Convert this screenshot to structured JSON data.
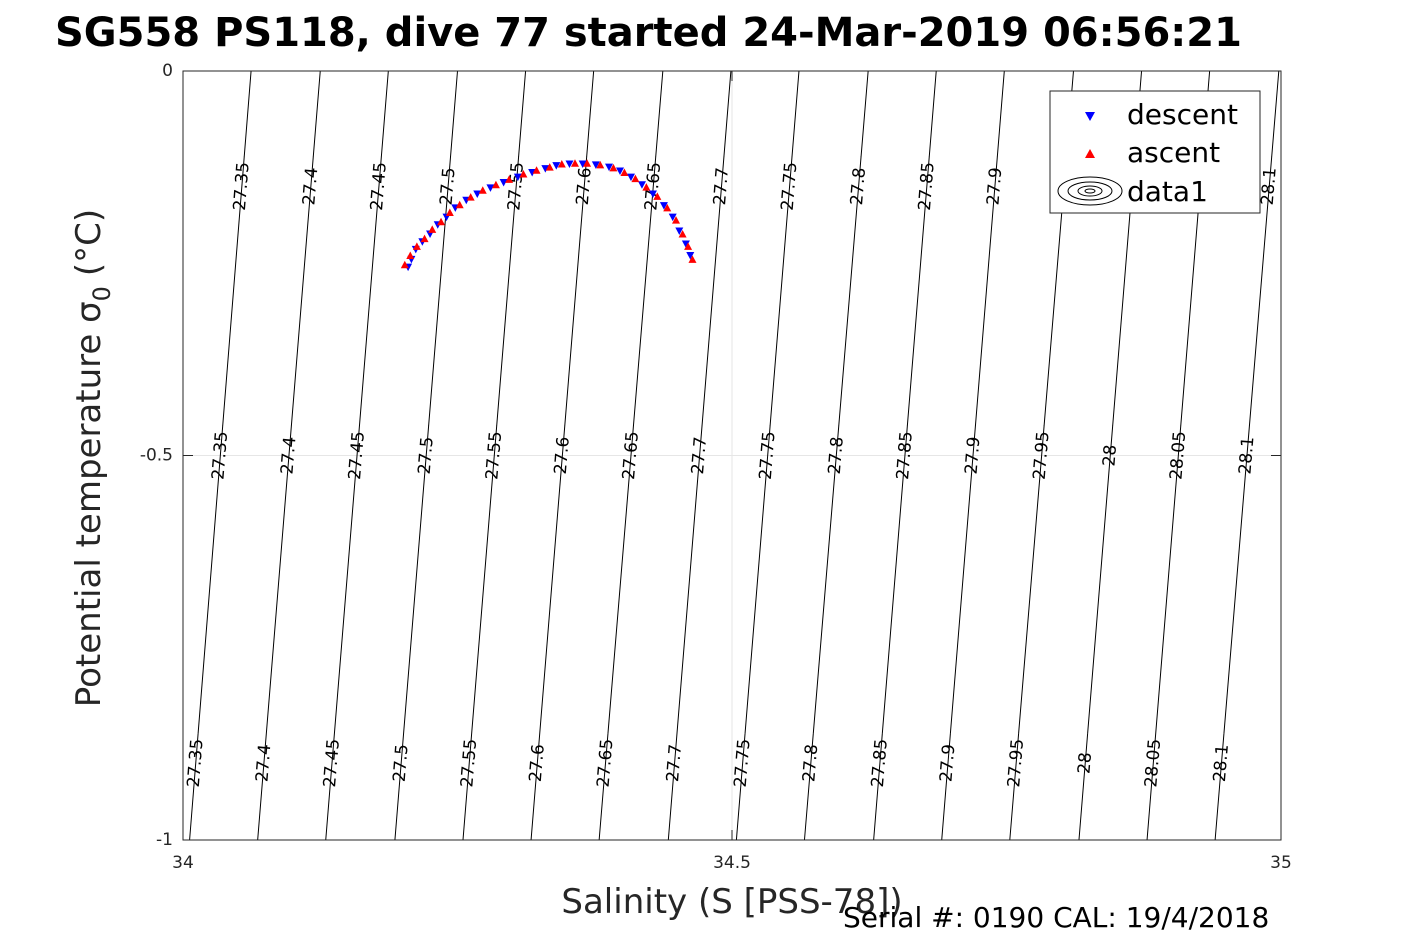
{
  "chart_data": {
    "type": "scatter",
    "title": "SG558 PS118, dive 77 started 24-Mar-2019 06:56:21",
    "xlabel": "Salinity (S [PSS-78])",
    "ylabel": "Potential temperature σ",
    "ylabel_sub": "0",
    "ylabel_unit": "(°C)",
    "xlim": [
      34,
      35
    ],
    "ylim": [
      -1,
      0
    ],
    "x_ticks": [
      34,
      34.5,
      35
    ],
    "x_tick_labels": [
      "34",
      "34.5",
      "35"
    ],
    "y_ticks": [
      0,
      -0.5,
      -1
    ],
    "y_tick_labels": [
      "0",
      "-0.5",
      "-1"
    ],
    "grid": true,
    "legend_position": "top-right",
    "legend": [
      {
        "label": "descent",
        "color": "#0000ff",
        "marker": "triangle-down"
      },
      {
        "label": "ascent",
        "color": "#ff0000",
        "marker": "triangle-up"
      },
      {
        "label": "data1",
        "color": "#000000",
        "marker": "contour"
      }
    ],
    "isopycnals": [
      {
        "label": "27.35",
        "points": [
          [
            34.006,
            -1
          ],
          [
            34.062,
            0
          ]
        ]
      },
      {
        "label": "27.4",
        "points": [
          [
            34.068,
            -1
          ],
          [
            34.125,
            0
          ]
        ]
      },
      {
        "label": "27.45",
        "points": [
          [
            34.13,
            -1
          ],
          [
            34.187,
            0
          ]
        ]
      },
      {
        "label": "27.5",
        "points": [
          [
            34.193,
            -1
          ],
          [
            34.25,
            0
          ]
        ]
      },
      {
        "label": "27.55",
        "points": [
          [
            34.255,
            -1
          ],
          [
            34.312,
            0
          ]
        ]
      },
      {
        "label": "27.6",
        "points": [
          [
            34.317,
            -1
          ],
          [
            34.374,
            0
          ]
        ]
      },
      {
        "label": "27.65",
        "points": [
          [
            34.379,
            -1
          ],
          [
            34.437,
            0
          ]
        ]
      },
      {
        "label": "27.7",
        "points": [
          [
            34.442,
            -1
          ],
          [
            34.499,
            0
          ]
        ]
      },
      {
        "label": "27.75",
        "points": [
          [
            34.504,
            -1
          ],
          [
            34.561,
            0
          ]
        ]
      },
      {
        "label": "27.8",
        "points": [
          [
            34.566,
            -1
          ],
          [
            34.624,
            0
          ]
        ]
      },
      {
        "label": "27.85",
        "points": [
          [
            34.629,
            -1
          ],
          [
            34.686,
            0
          ]
        ]
      },
      {
        "label": "27.9",
        "points": [
          [
            34.691,
            -1
          ],
          [
            34.748,
            0
          ]
        ]
      },
      {
        "label": "27.95",
        "points": [
          [
            34.753,
            -1
          ],
          [
            34.811,
            0
          ]
        ]
      },
      {
        "label": "28",
        "points": [
          [
            34.816,
            -1
          ],
          [
            34.873,
            0
          ]
        ]
      },
      {
        "label": "28.05",
        "points": [
          [
            34.878,
            -1
          ],
          [
            34.935,
            0
          ]
        ]
      },
      {
        "label": "28.1",
        "points": [
          [
            34.94,
            -1
          ],
          [
            34.998,
            0
          ]
        ]
      }
    ],
    "series": [
      {
        "name": "descent",
        "color": "#0000ff",
        "marker": "triangle-down",
        "x": [
          34.205,
          34.208,
          34.212,
          34.218,
          34.225,
          34.232,
          34.24,
          34.248,
          34.258,
          34.268,
          34.28,
          34.292,
          34.305,
          34.318,
          34.33,
          34.34,
          34.352,
          34.364,
          34.376,
          34.388,
          34.398,
          34.408,
          34.418,
          34.428,
          34.438,
          34.446,
          34.452,
          34.458,
          34.462
        ],
        "y": [
          -0.255,
          -0.245,
          -0.232,
          -0.222,
          -0.212,
          -0.2,
          -0.19,
          -0.178,
          -0.168,
          -0.16,
          -0.152,
          -0.145,
          -0.138,
          -0.132,
          -0.127,
          -0.123,
          -0.121,
          -0.121,
          -0.122,
          -0.125,
          -0.13,
          -0.138,
          -0.148,
          -0.16,
          -0.175,
          -0.19,
          -0.208,
          -0.225,
          -0.24
        ]
      },
      {
        "name": "ascent",
        "color": "#ff0000",
        "marker": "triangle-up",
        "x": [
          34.202,
          34.207,
          34.213,
          34.22,
          34.227,
          34.235,
          34.243,
          34.252,
          34.262,
          34.273,
          34.285,
          34.297,
          34.31,
          34.322,
          34.334,
          34.345,
          34.357,
          34.368,
          34.38,
          34.392,
          34.402,
          34.412,
          34.422,
          34.432,
          34.441,
          34.449,
          34.455,
          34.46,
          34.464
        ],
        "y": [
          -0.252,
          -0.24,
          -0.228,
          -0.218,
          -0.206,
          -0.196,
          -0.184,
          -0.174,
          -0.164,
          -0.155,
          -0.148,
          -0.141,
          -0.134,
          -0.129,
          -0.125,
          -0.121,
          -0.12,
          -0.12,
          -0.122,
          -0.126,
          -0.132,
          -0.14,
          -0.151,
          -0.163,
          -0.178,
          -0.194,
          -0.212,
          -0.228,
          -0.245
        ]
      }
    ]
  },
  "footer": {
    "serial": "Serial #: 0190  CAL: 19/4/2018"
  }
}
